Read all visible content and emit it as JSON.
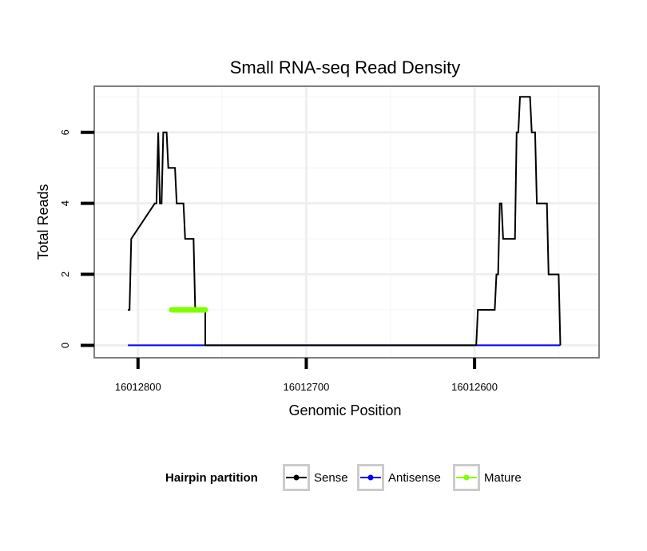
{
  "chart_data": {
    "type": "line",
    "title": "Small RNA-seq Read Density",
    "xlabel": "Genomic Position",
    "ylabel": "Total Reads",
    "x_reversed": true,
    "xlim": [
      16012826,
      16012526
    ],
    "ylim": [
      -0.35,
      7.3
    ],
    "x_ticks": [
      16012800,
      16012700,
      16012600
    ],
    "x_tick_labels": [
      "16012800",
      "16012700",
      "16012600"
    ],
    "y_ticks": [
      0,
      2,
      4,
      6
    ],
    "y_tick_labels": [
      "0",
      "2",
      "4",
      "6"
    ],
    "grid": true,
    "legend_position": "bottom",
    "legend_title": "Hairpin partition",
    "series": [
      {
        "name": "Sense",
        "color": "#000000",
        "x": [
          16012806,
          16012805,
          16012804,
          16012790,
          16012789,
          16012788,
          16012787,
          16012786,
          16012785,
          16012783,
          16012782,
          16012778,
          16012777,
          16012773,
          16012772,
          16012767,
          16012766,
          16012761,
          16012760,
          16012760,
          16012759,
          16012599,
          16012598,
          16012588,
          16012587,
          16012586,
          16012585,
          16012584,
          16012583,
          16012582,
          16012581,
          16012576,
          16012575,
          16012574,
          16012573,
          16012572,
          16012571,
          16012567,
          16012566,
          16012564,
          16012563,
          16012557,
          16012556,
          16012550,
          16012549
        ],
        "y": [
          1,
          1,
          3,
          4,
          4,
          6,
          4,
          4,
          6,
          6,
          5,
          5,
          4,
          4,
          3,
          3,
          1,
          1,
          1,
          0,
          0,
          0,
          1,
          1,
          2,
          2,
          4,
          4,
          3,
          3,
          3,
          3,
          6,
          6,
          7,
          7,
          7,
          7,
          6,
          6,
          4,
          4,
          2,
          2,
          0
        ]
      },
      {
        "name": "Antisense",
        "color": "#0000ff",
        "x": [
          16012806,
          16012549
        ],
        "y": [
          0,
          0
        ]
      },
      {
        "name": "Mature",
        "color": "#7fff00",
        "x": [
          16012780,
          16012760
        ],
        "y": [
          1,
          1
        ]
      }
    ]
  }
}
